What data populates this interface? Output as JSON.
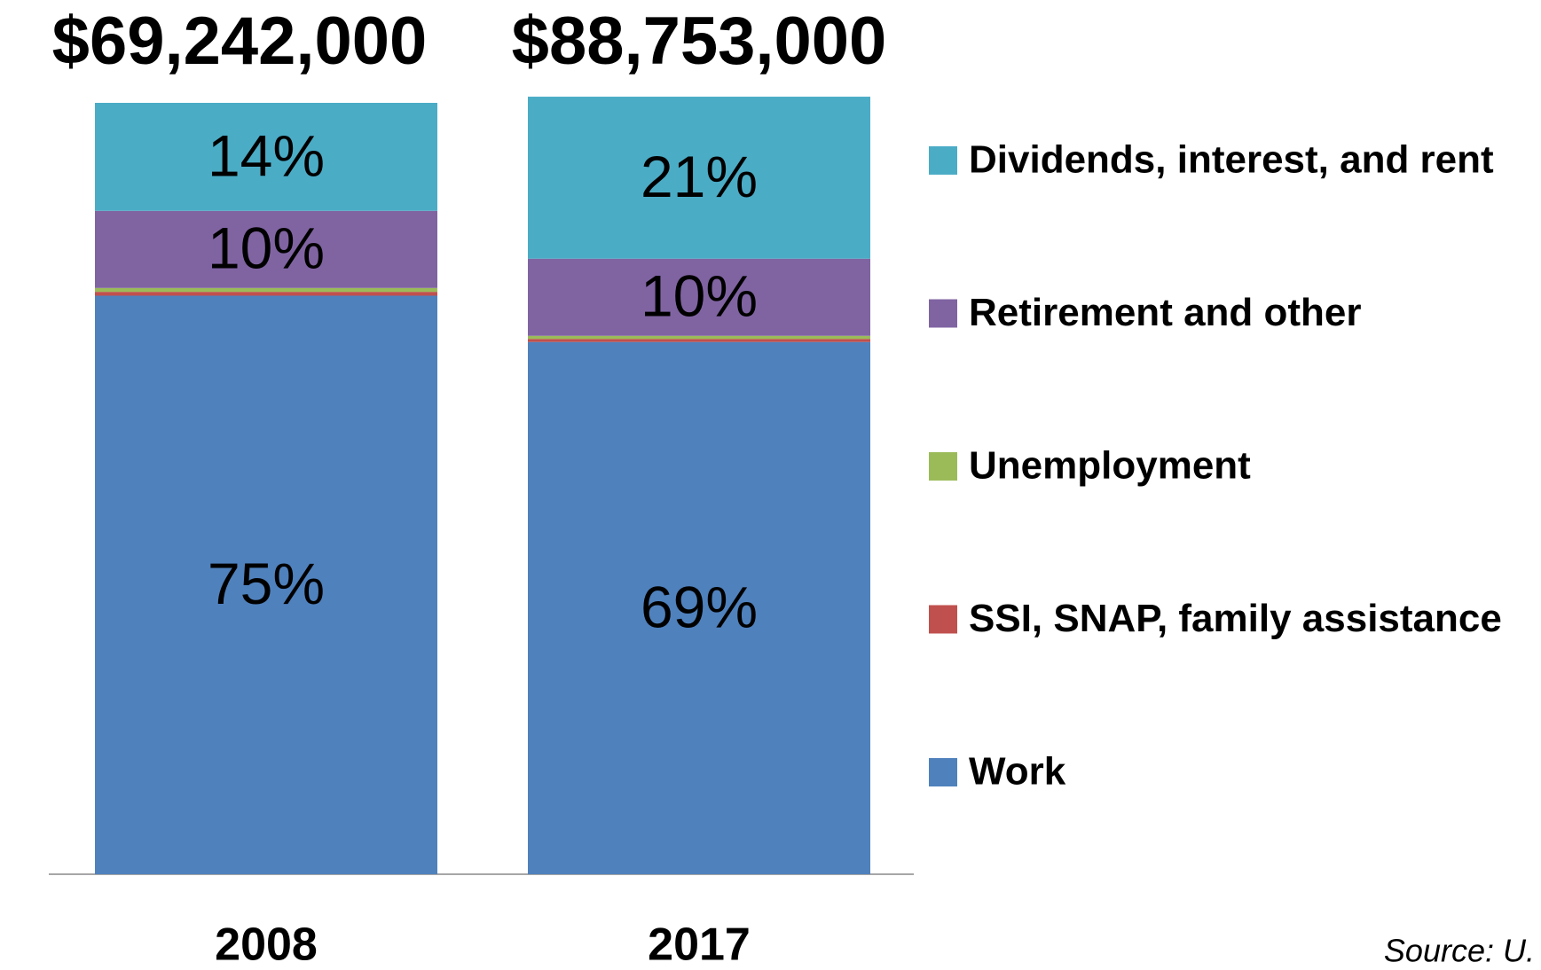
{
  "chart_data": {
    "type": "stacked_bar",
    "annotations": [
      "$69,242,000",
      "$88,753,000"
    ],
    "categories": [
      "2008",
      "2017"
    ],
    "series": [
      {
        "name": "Work",
        "color": "#4f81bd",
        "values": [
          75,
          69
        ],
        "value_labels": [
          "75%",
          "69%"
        ]
      },
      {
        "name": "SSI, SNAP, family assistance",
        "color": "#c0504d",
        "values": [
          0.5,
          0.4
        ],
        "value_labels": [
          null,
          null
        ]
      },
      {
        "name": "Unemployment",
        "color": "#9bbb59",
        "values": [
          0.5,
          0.4
        ],
        "value_labels": [
          null,
          null
        ]
      },
      {
        "name": "Retirement and other",
        "color": "#8064a2",
        "values": [
          10,
          10
        ],
        "value_labels": [
          "10%",
          "10%"
        ]
      },
      {
        "name": "Dividends, interest, and rent",
        "color": "#4bacc6",
        "values": [
          14,
          21
        ],
        "value_labels": [
          "14%",
          "21%"
        ]
      }
    ],
    "ylim": [
      0,
      100
    ],
    "source": "Source:  U."
  }
}
